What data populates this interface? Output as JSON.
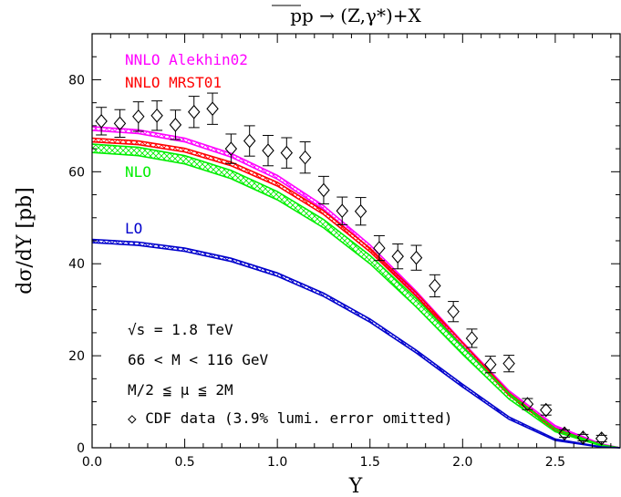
{
  "chart_data": {
    "type": "line",
    "title": "pp → (Z,γ*)+X",
    "xlabel": "Y",
    "ylabel": "dσ/dY [pb]",
    "xlim": [
      0,
      2.85
    ],
    "ylim": [
      0,
      90
    ],
    "x_ticks": [
      "0.0",
      "0.5",
      "1.0",
      "1.5",
      "2.0",
      "2.5"
    ],
    "y_ticks": [
      "0",
      "20",
      "40",
      "60",
      "80"
    ],
    "grid": false,
    "series": [
      {
        "name": "NNLO Alekhin02",
        "color": "#ff00ff",
        "x": [
          0,
          0.25,
          0.5,
          0.75,
          1.0,
          1.25,
          1.5,
          1.75,
          2.0,
          2.25,
          2.5,
          2.75,
          2.85
        ],
        "lower": [
          69.0,
          68.3,
          66.5,
          63.2,
          58.4,
          51.8,
          43.3,
          33.2,
          22.2,
          11.8,
          4.4,
          0.6,
          0.0
        ],
        "upper": [
          69.8,
          69.1,
          67.3,
          64.0,
          59.2,
          52.6,
          44.1,
          34.0,
          23.0,
          12.4,
          4.8,
          0.8,
          0.0
        ]
      },
      {
        "name": "NNLO MRST01",
        "color": "#ff0000",
        "x": [
          0,
          0.25,
          0.5,
          0.75,
          1.0,
          1.25,
          1.5,
          1.75,
          2.0,
          2.25,
          2.5,
          2.75,
          2.85
        ],
        "lower": [
          66.5,
          65.9,
          64.3,
          61.3,
          56.9,
          50.7,
          42.6,
          32.9,
          22.0,
          11.4,
          3.8,
          0.4,
          0.0
        ],
        "upper": [
          67.3,
          66.7,
          65.1,
          62.1,
          57.7,
          51.5,
          43.4,
          33.7,
          22.8,
          12.0,
          4.2,
          0.6,
          0.0
        ]
      },
      {
        "name": "NLO",
        "color": "#00ee00",
        "x": [
          0,
          0.25,
          0.5,
          0.75,
          1.0,
          1.25,
          1.5,
          1.75,
          2.0,
          2.25,
          2.5,
          2.75,
          2.85
        ],
        "lower": [
          64.2,
          63.5,
          61.7,
          58.5,
          53.9,
          47.8,
          40.0,
          30.6,
          20.3,
          10.6,
          3.5,
          0.4,
          0.0
        ],
        "upper": [
          66.0,
          65.3,
          63.5,
          60.3,
          55.7,
          49.6,
          41.8,
          32.4,
          22.0,
          11.8,
          4.1,
          0.6,
          0.0
        ]
      },
      {
        "name": "LO",
        "color": "#0000cc",
        "x": [
          0,
          0.25,
          0.5,
          0.75,
          1.0,
          1.25,
          1.5,
          1.75,
          2.0,
          2.25,
          2.5,
          2.75,
          2.85
        ],
        "lower": [
          44.6,
          44.0,
          42.7,
          40.5,
          37.3,
          32.9,
          27.3,
          20.6,
          13.2,
          6.2,
          1.6,
          0.1,
          0.0
        ],
        "upper": [
          45.3,
          44.7,
          43.4,
          41.2,
          38.0,
          33.6,
          28.0,
          21.2,
          13.8,
          6.7,
          1.9,
          0.2,
          0.0
        ]
      }
    ],
    "data_points": {
      "name": "CDF data (3.9% lumi. error omitted)",
      "x": [
        0.05,
        0.15,
        0.25,
        0.35,
        0.45,
        0.55,
        0.65,
        0.75,
        0.85,
        0.95,
        1.05,
        1.15,
        1.25,
        1.35,
        1.45,
        1.55,
        1.65,
        1.75,
        1.85,
        1.95,
        2.05,
        2.15,
        2.25,
        2.35,
        2.45,
        2.55,
        2.65,
        2.75
      ],
      "y": [
        71.0,
        70.5,
        72.0,
        72.2,
        70.2,
        73.0,
        73.7,
        65.0,
        66.7,
        64.6,
        64.1,
        63.1,
        56.0,
        51.5,
        51.4,
        43.4,
        41.6,
        41.3,
        35.2,
        29.6,
        23.8,
        18.1,
        18.3,
        9.5,
        8.2,
        3.1,
        2.2,
        2.0
      ],
      "err": [
        3.0,
        3.0,
        3.2,
        3.2,
        3.2,
        3.4,
        3.4,
        3.2,
        3.3,
        3.3,
        3.3,
        3.4,
        3.0,
        3.0,
        3.0,
        2.7,
        2.7,
        2.7,
        2.4,
        2.2,
        2.0,
        1.8,
        1.8,
        1.2,
        1.1,
        0.8,
        0.7,
        0.7
      ]
    },
    "annotations": [
      "√s = 1.8 TeV",
      "66 < M < 116 GeV",
      "M/2 ≦ μ ≦ 2M",
      "◇ CDF data (3.9% lumi. error omitted)"
    ]
  }
}
